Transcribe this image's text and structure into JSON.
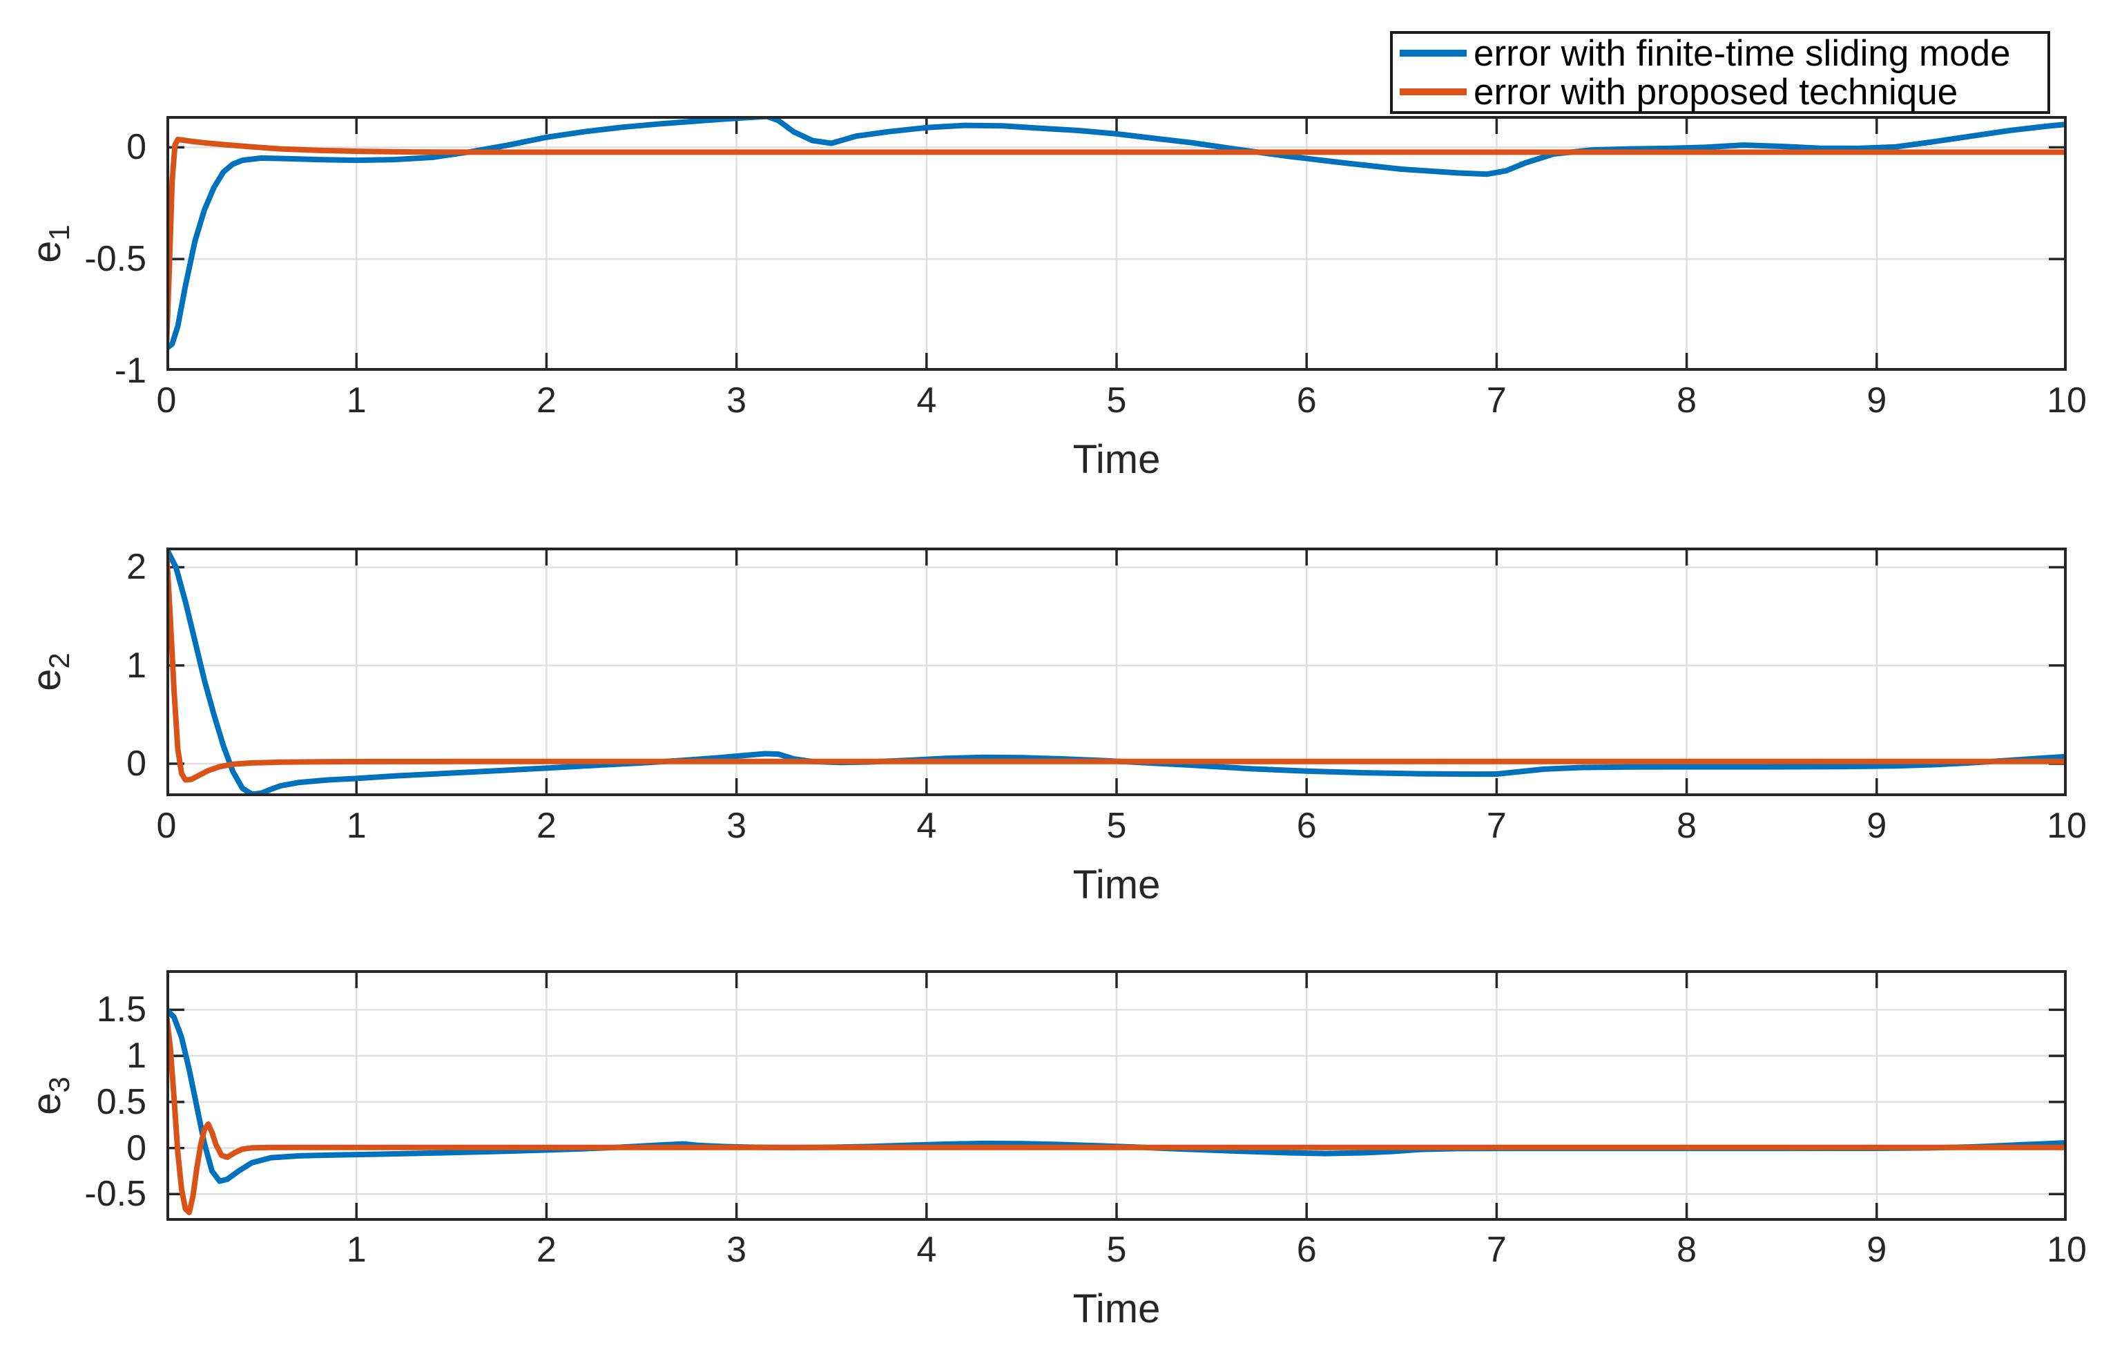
{
  "figure": {
    "background": "#ffffff",
    "axes_color": "#262626",
    "grid_color": "#e0e0e0",
    "blue": "#0072BD",
    "orange": "#D95319"
  },
  "legend": {
    "entries": [
      {
        "label": "error with finite-time sliding mode",
        "color": "#0072BD"
      },
      {
        "label": "error with proposed technique",
        "color": "#D95319"
      }
    ]
  },
  "chart_data": [
    {
      "type": "line",
      "ylabel_base": "e",
      "ylabel_sub": "1",
      "xlabel": "Time",
      "xlim": [
        0,
        10
      ],
      "ylim": [
        -1,
        0.14
      ],
      "xticks": [
        0,
        1,
        2,
        3,
        4,
        5,
        6,
        7,
        8,
        9,
        10
      ],
      "xtick_labels": [
        "0",
        "1",
        "2",
        "3",
        "4",
        "5",
        "6",
        "7",
        "8",
        "9",
        "10"
      ],
      "yticks": [
        0,
        -0.5,
        -1
      ],
      "ytick_labels": [
        "0",
        "-0.5",
        "-1"
      ],
      "grid": true,
      "legend_position": "top-right",
      "series": [
        {
          "name": "error with finite-time sliding mode",
          "color": "#0072BD",
          "x": [
            0,
            0.03,
            0.06,
            0.1,
            0.15,
            0.2,
            0.25,
            0.3,
            0.35,
            0.4,
            0.5,
            0.6,
            0.8,
            1.0,
            1.2,
            1.4,
            1.6,
            1.8,
            2.0,
            2.2,
            2.4,
            2.6,
            2.8,
            3.0,
            3.16,
            3.22,
            3.3,
            3.4,
            3.5,
            3.63,
            3.8,
            4.0,
            4.2,
            4.4,
            4.6,
            4.8,
            5.0,
            5.2,
            5.4,
            5.6,
            5.9,
            6.2,
            6.5,
            6.8,
            6.95,
            7.05,
            7.15,
            7.3,
            7.5,
            7.7,
            7.9,
            8.1,
            8.3,
            8.5,
            8.7,
            8.9,
            9.1,
            9.3,
            9.5,
            9.7,
            9.9,
            10
          ],
          "y": [
            -0.9,
            -0.88,
            -0.8,
            -0.62,
            -0.42,
            -0.28,
            -0.18,
            -0.11,
            -0.075,
            -0.058,
            -0.048,
            -0.05,
            -0.055,
            -0.058,
            -0.055,
            -0.045,
            -0.02,
            0.01,
            0.045,
            0.07,
            0.09,
            0.105,
            0.118,
            0.13,
            0.138,
            0.12,
            0.07,
            0.03,
            0.018,
            0.05,
            0.07,
            0.088,
            0.098,
            0.096,
            0.085,
            0.075,
            0.06,
            0.04,
            0.02,
            -0.005,
            -0.04,
            -0.07,
            -0.098,
            -0.115,
            -0.12,
            -0.105,
            -0.07,
            -0.03,
            -0.012,
            -0.007,
            -0.005,
            0.0,
            0.01,
            0.004,
            -0.004,
            -0.005,
            0.002,
            0.025,
            0.05,
            0.075,
            0.095,
            0.103
          ]
        },
        {
          "name": "error with proposed technique",
          "color": "#D95319",
          "x": [
            0,
            0.015,
            0.03,
            0.045,
            0.06,
            0.09,
            0.13,
            0.2,
            0.3,
            0.45,
            0.6,
            0.8,
            1.0,
            1.3,
            1.7,
            2.2,
            3.0,
            4.0,
            5.0,
            6.0,
            7.0,
            8.0,
            9.0,
            10
          ],
          "y": [
            -0.9,
            -0.55,
            -0.15,
            0.01,
            0.035,
            0.032,
            0.027,
            0.02,
            0.012,
            0.002,
            -0.007,
            -0.014,
            -0.018,
            -0.021,
            -0.022,
            -0.022,
            -0.022,
            -0.022,
            -0.022,
            -0.022,
            -0.022,
            -0.022,
            -0.022,
            -0.022
          ]
        }
      ]
    },
    {
      "type": "line",
      "ylabel_base": "e",
      "ylabel_sub": "2",
      "xlabel": "Time",
      "xlim": [
        0,
        10
      ],
      "ylim": [
        -0.33,
        2.2
      ],
      "xticks": [
        0,
        1,
        2,
        3,
        4,
        5,
        6,
        7,
        8,
        9,
        10
      ],
      "xtick_labels": [
        "0",
        "1",
        "2",
        "3",
        "4",
        "5",
        "6",
        "7",
        "8",
        "9",
        "10"
      ],
      "yticks": [
        2,
        1,
        0
      ],
      "ytick_labels": [
        "2",
        "1",
        "0"
      ],
      "grid": true,
      "series": [
        {
          "name": "error with finite-time sliding mode",
          "color": "#0072BD",
          "x": [
            0,
            0.05,
            0.1,
            0.15,
            0.2,
            0.25,
            0.3,
            0.35,
            0.4,
            0.45,
            0.5,
            0.55,
            0.6,
            0.7,
            0.85,
            1.0,
            1.2,
            1.4,
            1.7,
            2.0,
            2.3,
            2.5,
            2.7,
            2.9,
            3.05,
            3.15,
            3.22,
            3.3,
            3.4,
            3.55,
            3.7,
            3.9,
            4.1,
            4.3,
            4.5,
            4.7,
            4.9,
            5.1,
            5.4,
            5.7,
            6.0,
            6.3,
            6.6,
            6.9,
            7.0,
            7.1,
            7.25,
            7.45,
            7.7,
            8.0,
            8.4,
            8.8,
            9.1,
            9.3,
            9.5,
            9.7,
            9.85,
            10
          ],
          "y": [
            2.19,
            2.0,
            1.65,
            1.25,
            0.85,
            0.5,
            0.18,
            -0.08,
            -0.25,
            -0.31,
            -0.3,
            -0.26,
            -0.225,
            -0.19,
            -0.165,
            -0.15,
            -0.125,
            -0.105,
            -0.075,
            -0.045,
            -0.012,
            0.008,
            0.032,
            0.06,
            0.085,
            0.102,
            0.098,
            0.05,
            0.022,
            0.013,
            0.018,
            0.035,
            0.055,
            0.065,
            0.062,
            0.05,
            0.035,
            0.015,
            -0.015,
            -0.05,
            -0.075,
            -0.092,
            -0.102,
            -0.106,
            -0.105,
            -0.085,
            -0.055,
            -0.038,
            -0.033,
            -0.032,
            -0.032,
            -0.03,
            -0.022,
            -0.01,
            0.01,
            0.035,
            0.055,
            0.073
          ]
        },
        {
          "name": "error with proposed technique",
          "color": "#D95319",
          "x": [
            0,
            0.02,
            0.04,
            0.06,
            0.08,
            0.1,
            0.13,
            0.17,
            0.22,
            0.28,
            0.35,
            0.45,
            0.6,
            0.8,
            1.1,
            1.5,
            2.0,
            3.0,
            4.0,
            5.0,
            6.0,
            7.0,
            8.0,
            9.0,
            10
          ],
          "y": [
            2.19,
            1.5,
            0.75,
            0.15,
            -0.1,
            -0.165,
            -0.16,
            -0.12,
            -0.07,
            -0.03,
            -0.005,
            0.008,
            0.016,
            0.02,
            0.022,
            0.023,
            0.023,
            0.023,
            0.023,
            0.023,
            0.023,
            0.023,
            0.023,
            0.023,
            0.023
          ]
        }
      ]
    },
    {
      "type": "line",
      "ylabel_base": "e",
      "ylabel_sub": "3",
      "xlabel": "Time",
      "xlim": [
        0,
        10
      ],
      "ylim": [
        -0.79,
        1.93
      ],
      "xticks": [
        0,
        1,
        2,
        3,
        4,
        5,
        6,
        7,
        8,
        9,
        10
      ],
      "xtick_labels": [
        "",
        "1",
        "2",
        "3",
        "4",
        "5",
        "6",
        "7",
        "8",
        "9",
        "10"
      ],
      "yticks": [
        1.5,
        1,
        0.5,
        0,
        -0.5
      ],
      "ytick_labels": [
        "1.5",
        "1",
        "0.5",
        "0",
        "-0.5"
      ],
      "grid": true,
      "series": [
        {
          "name": "error with finite-time sliding mode",
          "color": "#0072BD",
          "x": [
            0,
            0.04,
            0.08,
            0.12,
            0.16,
            0.2,
            0.24,
            0.28,
            0.32,
            0.38,
            0.45,
            0.55,
            0.7,
            0.9,
            1.1,
            1.4,
            1.7,
            2.0,
            2.2,
            2.4,
            2.6,
            2.72,
            2.8,
            2.95,
            3.1,
            3.3,
            3.5,
            3.7,
            3.9,
            4.1,
            4.3,
            4.5,
            4.7,
            4.9,
            5.1,
            5.3,
            5.6,
            5.9,
            6.1,
            6.3,
            6.45,
            6.6,
            6.8,
            7.1,
            7.5,
            8.0,
            8.5,
            9.0,
            9.3,
            9.5,
            9.7,
            9.9,
            10
          ],
          "y": [
            1.5,
            1.42,
            1.2,
            0.85,
            0.45,
            0.05,
            -0.25,
            -0.36,
            -0.34,
            -0.25,
            -0.16,
            -0.105,
            -0.085,
            -0.075,
            -0.068,
            -0.055,
            -0.04,
            -0.022,
            -0.008,
            0.01,
            0.032,
            0.045,
            0.028,
            0.015,
            0.008,
            0.005,
            0.008,
            0.016,
            0.03,
            0.042,
            0.05,
            0.048,
            0.038,
            0.025,
            0.01,
            -0.008,
            -0.032,
            -0.052,
            -0.06,
            -0.052,
            -0.038,
            -0.015,
            -0.006,
            -0.004,
            -0.004,
            -0.004,
            -0.004,
            -0.003,
            0.002,
            0.012,
            0.03,
            0.048,
            0.057
          ]
        },
        {
          "name": "error with proposed technique",
          "color": "#D95319",
          "x": [
            0,
            0.02,
            0.04,
            0.06,
            0.08,
            0.1,
            0.12,
            0.14,
            0.16,
            0.18,
            0.2,
            0.22,
            0.24,
            0.26,
            0.29,
            0.32,
            0.36,
            0.4,
            0.45,
            0.55,
            0.8,
            1.5,
            3.0,
            5.0,
            7.0,
            9.0,
            10
          ],
          "y": [
            1.45,
            1.1,
            0.55,
            -0.05,
            -0.45,
            -0.66,
            -0.7,
            -0.52,
            -0.22,
            0.03,
            0.2,
            0.26,
            0.17,
            0.04,
            -0.08,
            -0.1,
            -0.05,
            -0.012,
            0.002,
            0.006,
            0.006,
            0.006,
            0.006,
            0.006,
            0.006,
            0.006,
            0.006
          ]
        }
      ]
    }
  ]
}
